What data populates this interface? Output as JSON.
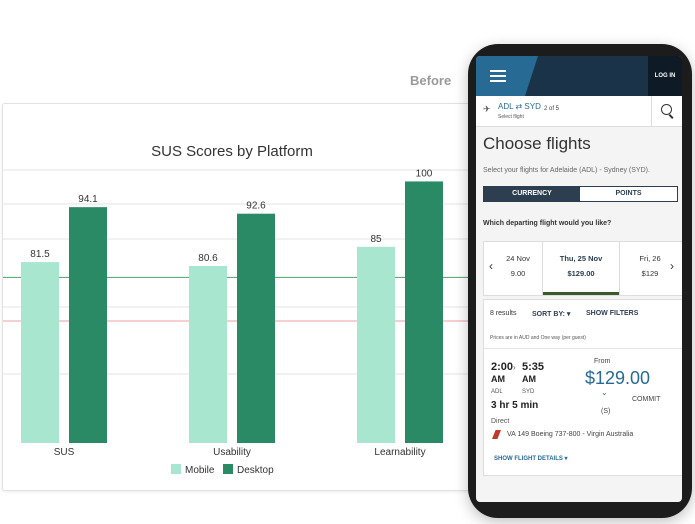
{
  "label_before": "Before",
  "chart_data": {
    "type": "bar",
    "title": "SUS Scores by Platform",
    "categories": [
      "SUS",
      "Usability",
      "Learnability"
    ],
    "series": [
      {
        "name": "Mobile",
        "values": [
          81.5,
          80.6,
          85
        ],
        "color": "#a8e6cf"
      },
      {
        "name": "Desktop",
        "values": [
          94.1,
          92.6,
          100
        ],
        "color": "#2a8a66"
      }
    ],
    "ylim": [
      40,
      104
    ],
    "reference_lines": [
      {
        "value": 78,
        "color": "#4aa36a"
      },
      {
        "value": 68,
        "color": "#e8a0a0"
      }
    ],
    "grid": true,
    "legend": "bottom"
  },
  "phone": {
    "login": "LOG IN",
    "route": "ADL ⇄ SYD",
    "select_flight": "Select flight",
    "step": "2 of 5",
    "title": "Choose flights",
    "subtitle": "Select your flights for Adelaide (ADL) - Sydney (SYD).",
    "currency": "CURRENCY",
    "points": "POINTS",
    "question": "Which departing flight would you like?",
    "dates": [
      {
        "date": "24 Nov",
        "price": "9.00"
      },
      {
        "date": "Thu, 25 Nov",
        "price": "$129.00"
      },
      {
        "date": "Fri, 26",
        "price": "$129"
      }
    ],
    "results_count": "8 results",
    "sort_by": "SORT BY: ▾",
    "show_filters": "SHOW FILTERS",
    "price_note": "Prices are in AUD and One way (per guest)",
    "depart_time": "2:00",
    "depart_ampm": "AM",
    "depart_airport": "ADL",
    "arrive_time": "5:35",
    "arrive_ampm": "AM",
    "arrive_airport": "SYD",
    "duration": "3 hr 5 min",
    "stops": "Direct",
    "flight_info": "VA 149 Boeing 737-800 - Virgin Australia",
    "show_details": "SHOW FLIGHT DETAILS ▾",
    "from_label": "From",
    "price": "$129.00",
    "fare_flag": "(S)",
    "fare_name": "COMMIT"
  }
}
